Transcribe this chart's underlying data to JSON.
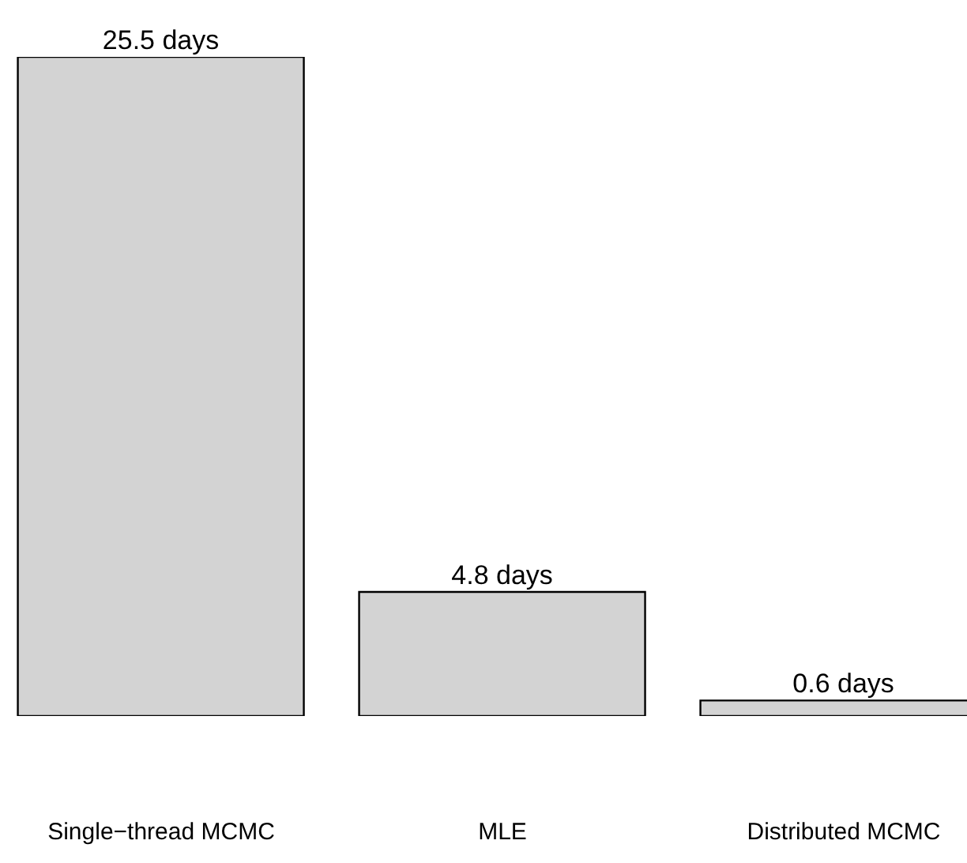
{
  "chart_data": {
    "type": "bar",
    "categories": [
      "Single−thread MCMC",
      "MLE",
      "Distributed MCMC"
    ],
    "values": [
      25.5,
      4.8,
      0.6
    ],
    "value_labels": [
      "25.5 days",
      "4.8 days",
      "0.6 days"
    ],
    "color": "#d3d3d3"
  }
}
